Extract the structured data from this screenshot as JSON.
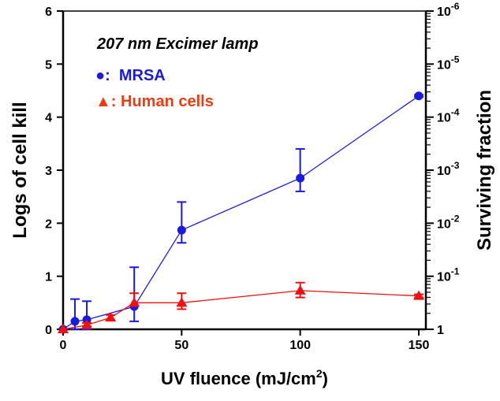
{
  "chart_data": {
    "type": "line",
    "title": "207 nm Excimer lamp",
    "xlabel": "UV fluence (mJ/cm",
    "xlabel_sup": "2",
    "xlabel_end": ")",
    "ylabel": "Logs of cell kill",
    "y2label": "Surviving fraction",
    "xlim": [
      0,
      150
    ],
    "ylim": [
      0,
      6
    ],
    "xticks": [
      0,
      50,
      100,
      150
    ],
    "yticks": [
      0,
      1,
      2,
      3,
      4,
      5,
      6
    ],
    "y2ticks": [
      {
        "base": "1",
        "exp": ""
      },
      {
        "base": "10",
        "exp": "-1"
      },
      {
        "base": "10",
        "exp": "-2"
      },
      {
        "base": "10",
        "exp": "-3"
      },
      {
        "base": "10",
        "exp": "-4"
      },
      {
        "base": "10",
        "exp": "-5"
      },
      {
        "base": "10",
        "exp": "-6"
      }
    ],
    "series": [
      {
        "name": "MRSA",
        "legend": "●:  MRSA",
        "color": "#1a1adf",
        "marker": "circle",
        "x": [
          0,
          5,
          10,
          30,
          50,
          100,
          150
        ],
        "y": [
          0,
          0.15,
          0.18,
          0.43,
          1.87,
          2.85,
          4.4
        ],
        "err_low": [
          0,
          0,
          0,
          0.15,
          1.63,
          2.6,
          4.38
        ],
        "err_high": [
          0,
          0.57,
          0.53,
          1.17,
          2.4,
          3.4,
          4.42
        ]
      },
      {
        "name": "Human cells",
        "legend": "▲: Human cells",
        "color": "#f01010",
        "marker": "triangle",
        "x": [
          0,
          10,
          20,
          30,
          50,
          100,
          150
        ],
        "y": [
          0,
          0.08,
          0.22,
          0.5,
          0.5,
          0.73,
          0.63
        ],
        "err_low": [
          0,
          0.06,
          0.17,
          0.45,
          0.38,
          0.6,
          0.6
        ],
        "err_high": [
          0,
          0.12,
          0.27,
          0.68,
          0.68,
          0.88,
          0.66
        ]
      }
    ]
  }
}
